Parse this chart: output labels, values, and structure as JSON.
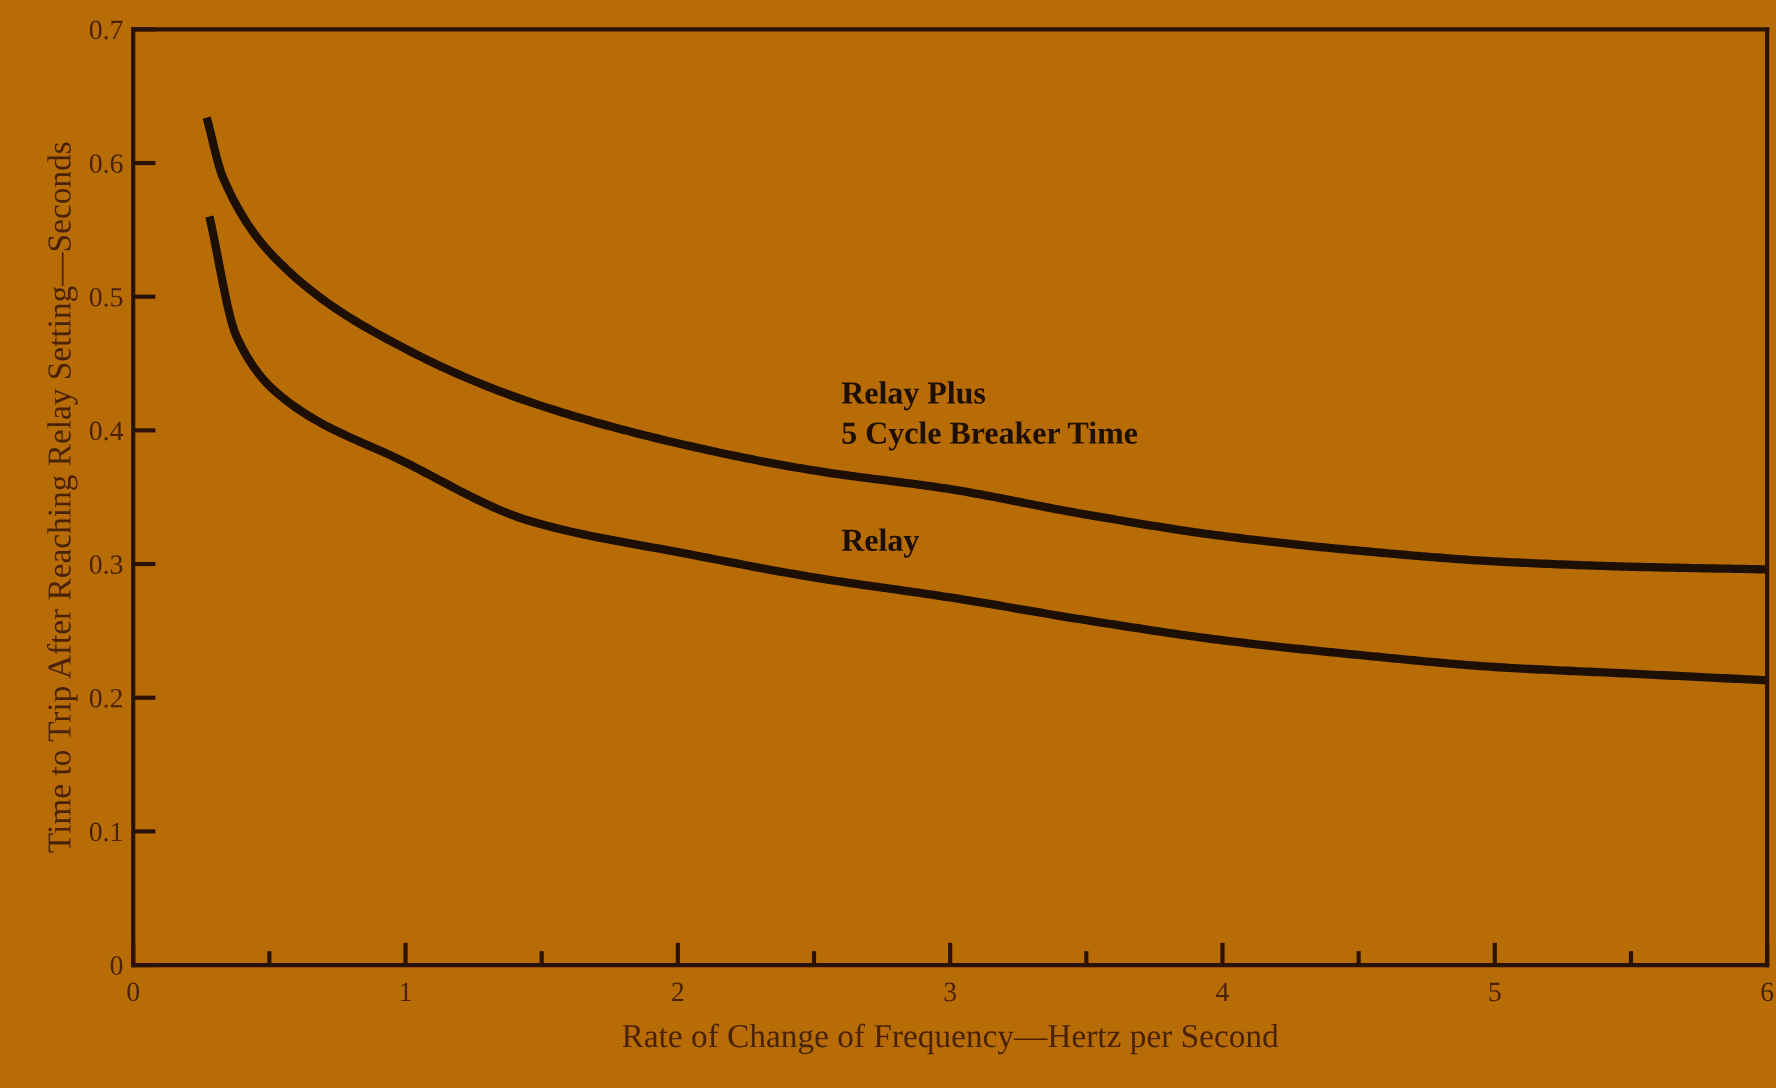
{
  "chart_data": {
    "type": "line",
    "xlabel": "Rate of Change of Frequency—Hertz per Second",
    "ylabel": "Time to Trip After Reaching Relay Setting—Seconds",
    "xlim": [
      0,
      6
    ],
    "ylim": [
      0,
      0.7
    ],
    "xticks": [
      0,
      {
        "value": 0.5,
        "label": null
      },
      1,
      {
        "value": 1.5,
        "label": null
      },
      2,
      {
        "value": 2.5,
        "label": null
      },
      3,
      {
        "value": 3.5,
        "label": null
      },
      4,
      {
        "value": 4.5,
        "label": null
      },
      5,
      {
        "value": 5.5,
        "label": null
      },
      6
    ],
    "yticks": [
      0,
      0.1,
      0.2,
      0.3,
      0.4,
      0.5,
      0.6,
      0.7
    ],
    "grid": false,
    "legend": false,
    "marker": "none",
    "line_style": "solid",
    "series": [
      {
        "name": "Relay Plus\n5 Cycle Breaker Time",
        "color": "#1e0f05",
        "x": [
          0.27,
          0.33,
          0.54,
          1.0,
          1.46,
          2.05,
          2.5,
          3,
          3.5,
          4,
          4.5,
          5,
          5.5,
          6
        ],
        "values": [
          0.634,
          0.589,
          0.525,
          0.461,
          0.421,
          0.388,
          0.37,
          0.356,
          0.337,
          0.321,
          0.31,
          0.302,
          0.298,
          0.296
        ]
      },
      {
        "name": "Relay",
        "color": "#1e0f05",
        "x": [
          0.28,
          0.38,
          0.54,
          1.0,
          1.46,
          2.05,
          2.5,
          3,
          3.5,
          4,
          4.5,
          5,
          5.5,
          6
        ],
        "values": [
          0.56,
          0.47,
          0.426,
          0.376,
          0.332,
          0.307,
          0.29,
          0.275,
          0.258,
          0.243,
          0.232,
          0.223,
          0.218,
          0.213
        ]
      }
    ]
  }
}
